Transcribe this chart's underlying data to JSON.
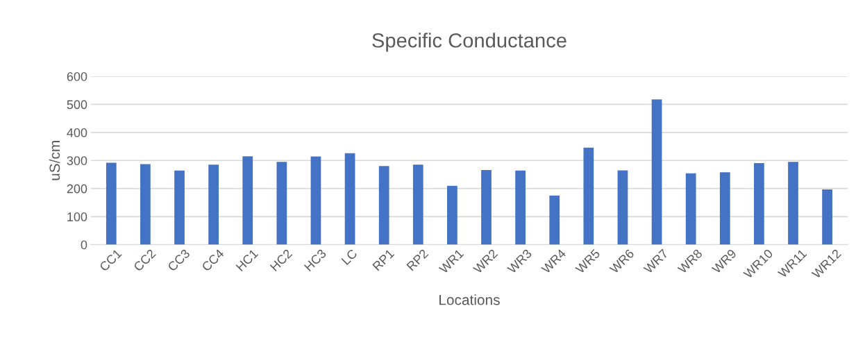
{
  "chart_data": {
    "type": "bar",
    "title": "Specific Conductance",
    "xlabel": "Locations",
    "ylabel": "uS/cm",
    "categories": [
      "CC1",
      "CC2",
      "CC3",
      "CC4",
      "HC1",
      "HC2",
      "HC3",
      "LC",
      "RP1",
      "RP2",
      "WR1",
      "WR2",
      "WR3",
      "WR4",
      "WR5",
      "WR6",
      "WR7",
      "WR8",
      "WR9",
      "WR10",
      "WR11",
      "WR12"
    ],
    "values": [
      292,
      287,
      264,
      285,
      315,
      295,
      314,
      326,
      280,
      285,
      210,
      266,
      264,
      175,
      346,
      265,
      518,
      254,
      258,
      291,
      295,
      197
    ],
    "color": "#4472c4",
    "ylim": [
      0,
      600
    ],
    "yticks": [
      0,
      100,
      200,
      300,
      400,
      500,
      600
    ],
    "grid": "y",
    "legend": false
  }
}
